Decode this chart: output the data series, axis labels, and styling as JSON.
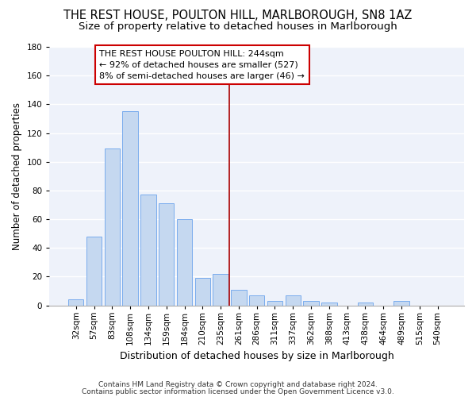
{
  "title": "THE REST HOUSE, POULTON HILL, MARLBOROUGH, SN8 1AZ",
  "subtitle": "Size of property relative to detached houses in Marlborough",
  "xlabel": "Distribution of detached houses by size in Marlborough",
  "ylabel": "Number of detached properties",
  "categories": [
    "32sqm",
    "57sqm",
    "83sqm",
    "108sqm",
    "134sqm",
    "159sqm",
    "184sqm",
    "210sqm",
    "235sqm",
    "261sqm",
    "286sqm",
    "311sqm",
    "337sqm",
    "362sqm",
    "388sqm",
    "413sqm",
    "438sqm",
    "464sqm",
    "489sqm",
    "515sqm",
    "540sqm"
  ],
  "values": [
    4,
    48,
    109,
    135,
    77,
    71,
    60,
    19,
    22,
    11,
    7,
    3,
    7,
    3,
    2,
    0,
    2,
    0,
    3,
    0,
    0
  ],
  "bar_color": "#c5d8f0",
  "bar_edge_color": "#7aaced",
  "vline_color": "#aa0000",
  "annotation_text": "THE REST HOUSE POULTON HILL: 244sqm\n← 92% of detached houses are smaller (527)\n8% of semi-detached houses are larger (46) →",
  "annotation_box_color": "#cc0000",
  "ylim": [
    0,
    180
  ],
  "yticks": [
    0,
    20,
    40,
    60,
    80,
    100,
    120,
    140,
    160,
    180
  ],
  "background_color": "#eef2fa",
  "grid_color": "#ffffff",
  "footer1": "Contains HM Land Registry data © Crown copyright and database right 2024.",
  "footer2": "Contains public sector information licensed under the Open Government Licence v3.0.",
  "title_fontsize": 10.5,
  "subtitle_fontsize": 9.5,
  "annotation_fontsize": 8,
  "ylabel_fontsize": 8.5,
  "xlabel_fontsize": 9,
  "tick_fontsize": 7.5,
  "vline_x_index": 8.5
}
